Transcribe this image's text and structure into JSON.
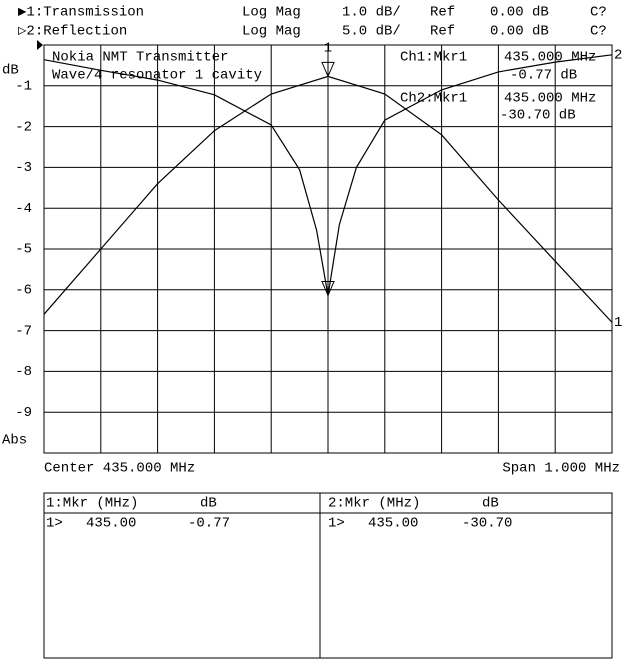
{
  "header": [
    [
      "▶1:Transmission",
      "Log Mag",
      "1.0 dB/",
      "Ref",
      "0.00 dB",
      "C?"
    ],
    [
      "▷2:Reflection",
      "Log Mag",
      "5.0 dB/",
      "Ref",
      "0.00 dB",
      "C?"
    ]
  ],
  "annotation": [
    "Nokia NMT Transmitter",
    "Wave/4 resonator 1 cavity"
  ],
  "readouts": [
    [
      "Ch1:Mkr1",
      "435.000 MHz",
      "-0.77 dB"
    ],
    [
      "Ch2:Mkr1",
      "435.000 MHz",
      "-30.70 dB"
    ]
  ],
  "footer": {
    "center": "Center 435.000 MHz",
    "span": "Span 1.000 MHz"
  },
  "marker_table": [
    {
      "header": [
        "1:Mkr (MHz)",
        "dB"
      ],
      "row": [
        "1>",
        "435.00",
        "-0.77"
      ]
    },
    {
      "header": [
        "2:Mkr (MHz)",
        "dB"
      ],
      "row": [
        "1>",
        "435.00",
        "-30.70"
      ]
    }
  ],
  "chart_data": {
    "type": "line",
    "y_label": "dB",
    "y_label_bottom": "Abs",
    "marker_label": "1",
    "marker_x": 435.0,
    "xlim": [
      434.5,
      435.5
    ],
    "ylim": [
      -10,
      0
    ],
    "yticks": [
      -1,
      -2,
      -3,
      -4,
      -5,
      -6,
      -7,
      -8,
      -9
    ],
    "y2lim": [
      -50,
      0
    ],
    "grid": true,
    "series": [
      {
        "name": "Transmission",
        "label": "1",
        "color": "#000000",
        "x": [
          434.5,
          434.6,
          434.7,
          434.8,
          434.9,
          435.0,
          435.1,
          435.2,
          435.3,
          435.4,
          435.5
        ],
        "values": [
          -6.6,
          -5.0,
          -3.4,
          -2.1,
          -1.2,
          -0.77,
          -1.2,
          -2.2,
          -3.8,
          -5.3,
          -6.8
        ]
      },
      {
        "name": "Reflection",
        "label": "2",
        "color": "#000000",
        "axis": "y2",
        "x": [
          434.5,
          434.6,
          434.7,
          434.8,
          434.9,
          434.95,
          434.98,
          435.0,
          435.02,
          435.05,
          435.1,
          435.2,
          435.3,
          435.4,
          435.5
        ],
        "values": [
          -1.8,
          -3.1,
          -4.3,
          -6.1,
          -9.8,
          -15.3,
          -22.7,
          -30.7,
          -22.0,
          -15.0,
          -9.2,
          -5.5,
          -3.3,
          -2.1,
          -1.2
        ]
      }
    ]
  }
}
